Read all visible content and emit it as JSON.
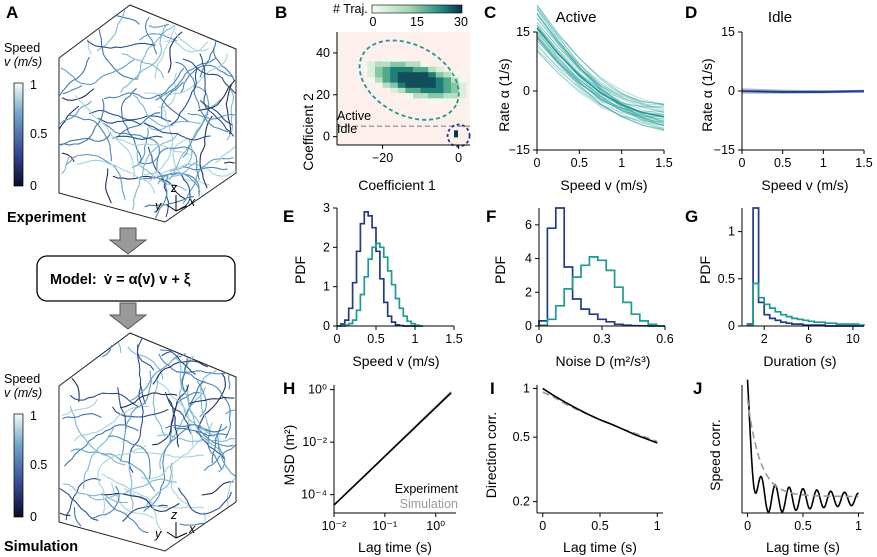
{
  "panel_letters": {
    "A": "A",
    "B": "B",
    "C": "C",
    "D": "D",
    "E": "E",
    "F": "F",
    "G": "G",
    "H": "H",
    "I": "I",
    "J": "J"
  },
  "panelA": {
    "speed_label_1": "Speed",
    "speed_label_2": "v (m/s)",
    "colorbar_ticks": [
      "1",
      "0.5",
      "0"
    ],
    "axes": {
      "z": "z",
      "y": "y",
      "x": "x"
    },
    "experiment_label": "Experiment",
    "simulation_label": "Simulation",
    "model_prefix": "Model:",
    "model_equation": "v̇ = α(v) v + ξ"
  },
  "colors": {
    "teal": "#1d9a92",
    "navy": "#1f3c85",
    "gray": "#9a9a9a",
    "track": "#4c88b3"
  },
  "chart_data": [
    {
      "panel": "B",
      "type": "heatmap",
      "title": "# Traj.",
      "colorbar_ticks": [
        "0",
        "15",
        "30"
      ],
      "xlabel": "Coefficient 1",
      "ylabel": "Coefficient 2",
      "xticks": [
        "−20",
        "0"
      ],
      "yticks": [
        "40",
        "20",
        "0"
      ],
      "xlim": [
        -32,
        3
      ],
      "ylim": [
        -4,
        50
      ],
      "threshold_y": 5,
      "regions": [
        {
          "name": "Active",
          "color": "#1d9a92"
        },
        {
          "name": "Idle",
          "color": "#1f3c85"
        }
      ]
    },
    {
      "panel": "C",
      "type": "line",
      "title": "Active",
      "xlabel": "Speed v (m/s)",
      "ylabel": "Rate α (1/s)",
      "xticks": [
        "0",
        "0.5",
        "1",
        "1.5"
      ],
      "yticks": [
        "15",
        "0",
        "−15"
      ],
      "xlim": [
        0,
        1.5
      ],
      "ylim": [
        -15,
        15
      ],
      "series": [
        {
          "x": [
            0,
            0.25,
            0.5,
            0.75,
            1.0,
            1.25,
            1.5
          ],
          "y": [
            16,
            9.5,
            4,
            -0.5,
            -3.5,
            -5.5,
            -6.5
          ]
        }
      ]
    },
    {
      "panel": "D",
      "type": "line",
      "title": "Idle",
      "xlabel": "Speed v (m/s)",
      "ylabel": "Rate α (1/s)",
      "xticks": [
        "0",
        "0.5",
        "1",
        "1.5"
      ],
      "yticks": [
        "15",
        "0",
        "−15"
      ],
      "xlim": [
        0,
        1.5
      ],
      "ylim": [
        -15,
        15
      ],
      "series": [
        {
          "x": [
            0,
            0.5,
            1.0,
            1.5
          ],
          "y": [
            0,
            -0.2,
            -0.2,
            0
          ]
        }
      ]
    },
    {
      "panel": "E",
      "type": "line",
      "xlabel": "Speed v (m/s)",
      "ylabel": "PDF",
      "xticks": [
        "0",
        "0.5",
        "1",
        "1.5"
      ],
      "yticks": [
        "3",
        "2",
        "1",
        "0"
      ],
      "xlim": [
        0,
        1.5
      ],
      "ylim": [
        0,
        3
      ],
      "x": [
        0.0,
        0.05,
        0.1,
        0.15,
        0.2,
        0.25,
        0.3,
        0.35,
        0.4,
        0.45,
        0.5,
        0.55,
        0.6,
        0.65,
        0.7,
        0.75,
        0.8,
        0.85,
        0.9,
        0.95,
        1.0,
        1.05
      ],
      "series": [
        {
          "color": "#1f3c85",
          "values": [
            0,
            0.05,
            0.15,
            0.45,
            1.1,
            1.9,
            2.6,
            2.9,
            2.8,
            2.5,
            1.9,
            1.2,
            0.6,
            0.25,
            0.1,
            0.03,
            0.01,
            0,
            0,
            0,
            0,
            0
          ]
        },
        {
          "color": "#1d9a92",
          "values": [
            0,
            0,
            0.02,
            0.06,
            0.15,
            0.4,
            0.8,
            1.25,
            1.7,
            2.0,
            2.1,
            2.0,
            1.75,
            1.4,
            1.05,
            0.7,
            0.45,
            0.25,
            0.12,
            0.06,
            0.02,
            0
          ]
        }
      ]
    },
    {
      "panel": "F",
      "type": "line",
      "xlabel": "Noise D (m²/s³)",
      "ylabel": "PDF",
      "xticks": [
        "0",
        "0.3",
        "0.6"
      ],
      "yticks": [
        "6",
        "4",
        "2",
        "0"
      ],
      "xlim": [
        0,
        0.6
      ],
      "ylim": [
        0,
        7
      ],
      "x": [
        0,
        0.04,
        0.08,
        0.12,
        0.16,
        0.2,
        0.24,
        0.28,
        0.32,
        0.36,
        0.4,
        0.44,
        0.48,
        0.52,
        0.56
      ],
      "series": [
        {
          "color": "#1f3c85",
          "values": [
            0.3,
            5.8,
            7.0,
            3.5,
            1.6,
            1.0,
            0.7,
            0.4,
            0.25,
            0.1,
            0.05,
            0.02,
            0.01,
            0,
            0
          ]
        },
        {
          "color": "#1d9a92",
          "values": [
            0.05,
            0.4,
            1.2,
            2.2,
            2.9,
            3.6,
            4.1,
            3.9,
            3.3,
            2.3,
            1.4,
            0.7,
            0.3,
            0.1,
            0
          ]
        }
      ]
    },
    {
      "panel": "G",
      "type": "line",
      "xlabel": "Duration (s)",
      "ylabel": "PDF",
      "xticks": [
        "2",
        "6",
        "10"
      ],
      "yticks": [
        "1",
        "0.5",
        "0"
      ],
      "xlim": [
        0,
        11
      ],
      "ylim": [
        0,
        1.25
      ],
      "x": [
        0.5,
        1,
        1.5,
        2,
        2.5,
        3,
        3.5,
        4,
        4.5,
        5,
        5.5,
        6,
        6.5,
        7,
        7.5,
        8,
        8.5,
        9,
        9.5,
        10,
        10.5
      ],
      "series": [
        {
          "color": "#1f3c85",
          "values": [
            0.02,
            1.25,
            0.25,
            0.12,
            0.08,
            0.06,
            0.04,
            0.03,
            0.02,
            0.02,
            0.01,
            0.01,
            0.01,
            0.01,
            0,
            0,
            0,
            0,
            0,
            0,
            0
          ]
        },
        {
          "color": "#1d9a92",
          "values": [
            0.01,
            0.45,
            0.3,
            0.23,
            0.19,
            0.15,
            0.12,
            0.1,
            0.08,
            0.07,
            0.06,
            0.05,
            0.04,
            0.04,
            0.03,
            0.03,
            0.02,
            0.02,
            0.02,
            0.02,
            0.01
          ]
        }
      ]
    },
    {
      "panel": "H",
      "type": "line",
      "xlabel": "Lag time (s)",
      "ylabel": "MSD (m²)",
      "xscale": "log",
      "yscale": "log",
      "xticks": [
        "10⁻²",
        "10⁻¹",
        "10⁰"
      ],
      "yticks": [
        "10⁰",
        "10⁻²",
        "10⁻⁴"
      ],
      "xlim": [
        0.01,
        2.5
      ],
      "ylim": [
        2e-05,
        1.5
      ],
      "series": [
        {
          "name": "Experiment",
          "color": "#000000",
          "x": [
            0.01,
            2
          ],
          "y": [
            4e-05,
            0.75
          ]
        },
        {
          "name": "Simulation",
          "color": "#9a9a9a",
          "x": [
            0.01,
            2
          ],
          "y": [
            4e-05,
            0.82
          ]
        }
      ]
    },
    {
      "panel": "I",
      "type": "line",
      "xlabel": "Lag time (s)",
      "ylabel": "Direction corr.",
      "yscale": "log",
      "xticks": [
        "0",
        "0.5",
        "1"
      ],
      "yticks": [
        "1",
        "0.5",
        "0.2"
      ],
      "xlim": [
        -0.05,
        1.05
      ],
      "ylim": [
        0.17,
        1.05
      ],
      "series": [
        {
          "color": "#000000",
          "x": [
            0,
            0.1,
            0.2,
            0.3,
            0.4,
            0.5,
            0.6,
            0.7,
            0.8,
            0.9,
            1.0
          ],
          "y": [
            1,
            0.9,
            0.82,
            0.75,
            0.69,
            0.64,
            0.6,
            0.56,
            0.52,
            0.49,
            0.46
          ]
        },
        {
          "color": "#9a9a9a",
          "dashed": true,
          "x": [
            0,
            0.1,
            0.2,
            0.3,
            0.4,
            0.5,
            0.6,
            0.7,
            0.8,
            0.9,
            1.0
          ],
          "y": [
            0.95,
            0.88,
            0.8,
            0.74,
            0.69,
            0.64,
            0.6,
            0.56,
            0.53,
            0.5,
            0.47
          ]
        }
      ]
    },
    {
      "panel": "J",
      "type": "line",
      "xlabel": "Lag time (s)",
      "ylabel": "Speed corr.",
      "xticks": [
        "0",
        "0.5",
        "1"
      ],
      "yticks": [],
      "xlim": [
        -0.05,
        1.05
      ],
      "ylim": [
        -0.15,
        1.05
      ],
      "series": [
        {
          "color": "#000000",
          "oscillating": true
        },
        {
          "color": "#9a9a9a",
          "dashed": true
        }
      ]
    }
  ],
  "legends": {
    "H": [
      "Experiment",
      "Simulation"
    ]
  }
}
